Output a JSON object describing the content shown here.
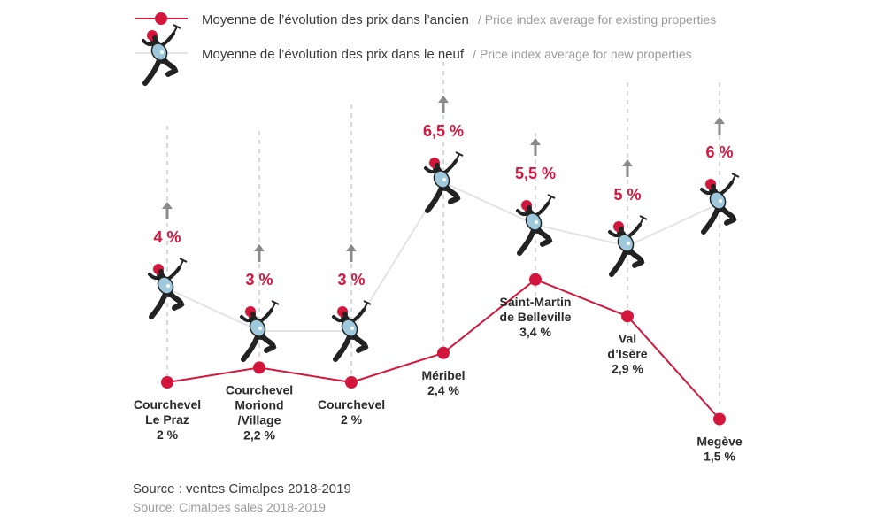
{
  "legend": {
    "existing_main": "Moyenne de l’évolution des prix dans l’ancien",
    "existing_sub": "/ Price index average for existing properties",
    "new_main": "Moyenne de l’évolution des prix dans le neuf",
    "new_sub": "/ Price index average for new properties"
  },
  "source": {
    "main": "Source : ventes Cimalpes 2018-2019",
    "sub": "Source: Cimalpes sales 2018-2019"
  },
  "colors": {
    "existing": "#d4163c",
    "new_line": "#e4e4e4",
    "arrow": "#8a8a8a",
    "guide": "#bfbfbf",
    "climber_body": "#222222",
    "climber_pack": "#9ec9dc",
    "climber_helmet": "#d4163c"
  },
  "icons": {
    "existing_marker": "red-dot-marker",
    "new_marker": "mountain-climber-icon",
    "up_arrow": "up-arrow-icon"
  },
  "chart_data": {
    "type": "line",
    "categories": [
      [
        "Courchevel",
        "Le Praz"
      ],
      [
        "Courchevel",
        "Moriond",
        "/Village"
      ],
      [
        "Courchevel"
      ],
      [
        "Méribel"
      ],
      [
        "Saint-Martin",
        "de Belleville"
      ],
      [
        "Val",
        "d’Isère"
      ],
      [
        "Megève"
      ]
    ],
    "series": [
      {
        "name": "Moyenne de l’évolution des prix dans l’ancien",
        "values": [
          2,
          2.2,
          2,
          2.4,
          3.4,
          2.9,
          1.5
        ],
        "labels": [
          "2 %",
          "2,2 %",
          "2 %",
          "2,4 %",
          "3,4 %",
          "2,9 %",
          "1,5 %"
        ]
      },
      {
        "name": "Moyenne de l’évolution des prix dans le neuf",
        "values": [
          4,
          3,
          3,
          6.5,
          5.5,
          5,
          6
        ],
        "labels": [
          "4 %",
          "3 %",
          "3 %",
          "6,5 %",
          "5,5 %",
          "5 %",
          "6 %"
        ]
      }
    ],
    "legend_position": "top-left",
    "grid": false
  }
}
